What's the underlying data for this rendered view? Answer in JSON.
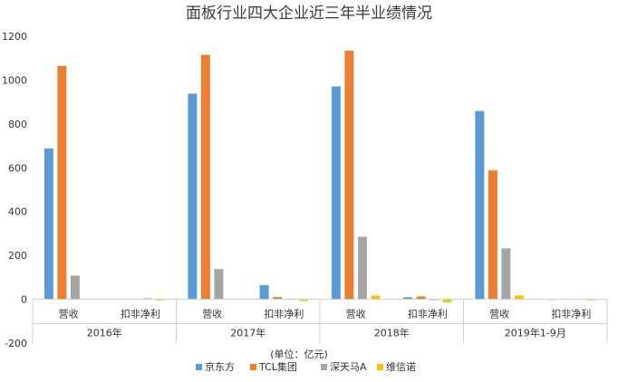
{
  "chart_data": {
    "type": "bar",
    "title": "面板行业四大企业近三年半业绩情况",
    "unit_note": "(单位：亿元)",
    "groups": [
      {
        "label": "2016年",
        "categories": [
          "营收",
          "扣非净利"
        ]
      },
      {
        "label": "2017年",
        "categories": [
          "营收",
          "扣非净利"
        ]
      },
      {
        "label": "2018年",
        "categories": [
          "营收",
          "扣非净利"
        ]
      },
      {
        "label": "2019年1-9月",
        "categories": [
          "营收",
          "扣非净利"
        ]
      }
    ],
    "series": [
      {
        "name": "京东方",
        "color": "#5b9bd5",
        "values": [
          688,
          0,
          938,
          64,
          971,
          9,
          859,
          -3
        ]
      },
      {
        "name": "TCL集团",
        "color": "#ed7d31",
        "values": [
          1065,
          1,
          1115,
          10,
          1134,
          13,
          588,
          -2
        ]
      },
      {
        "name": "深天马A",
        "color": "#a5a5a5",
        "values": [
          108,
          4,
          138,
          3,
          285,
          -4,
          232,
          -2
        ]
      },
      {
        "name": "维信诺",
        "color": "#ffc000",
        "values": [
          0,
          -5,
          0,
          -8,
          17,
          -14,
          17,
          -5
        ]
      }
    ],
    "ylim": [
      -200,
      1200
    ],
    "yticks": [
      -200,
      0,
      200,
      400,
      600,
      800,
      1000,
      1200
    ],
    "legend_position": "bottom"
  }
}
